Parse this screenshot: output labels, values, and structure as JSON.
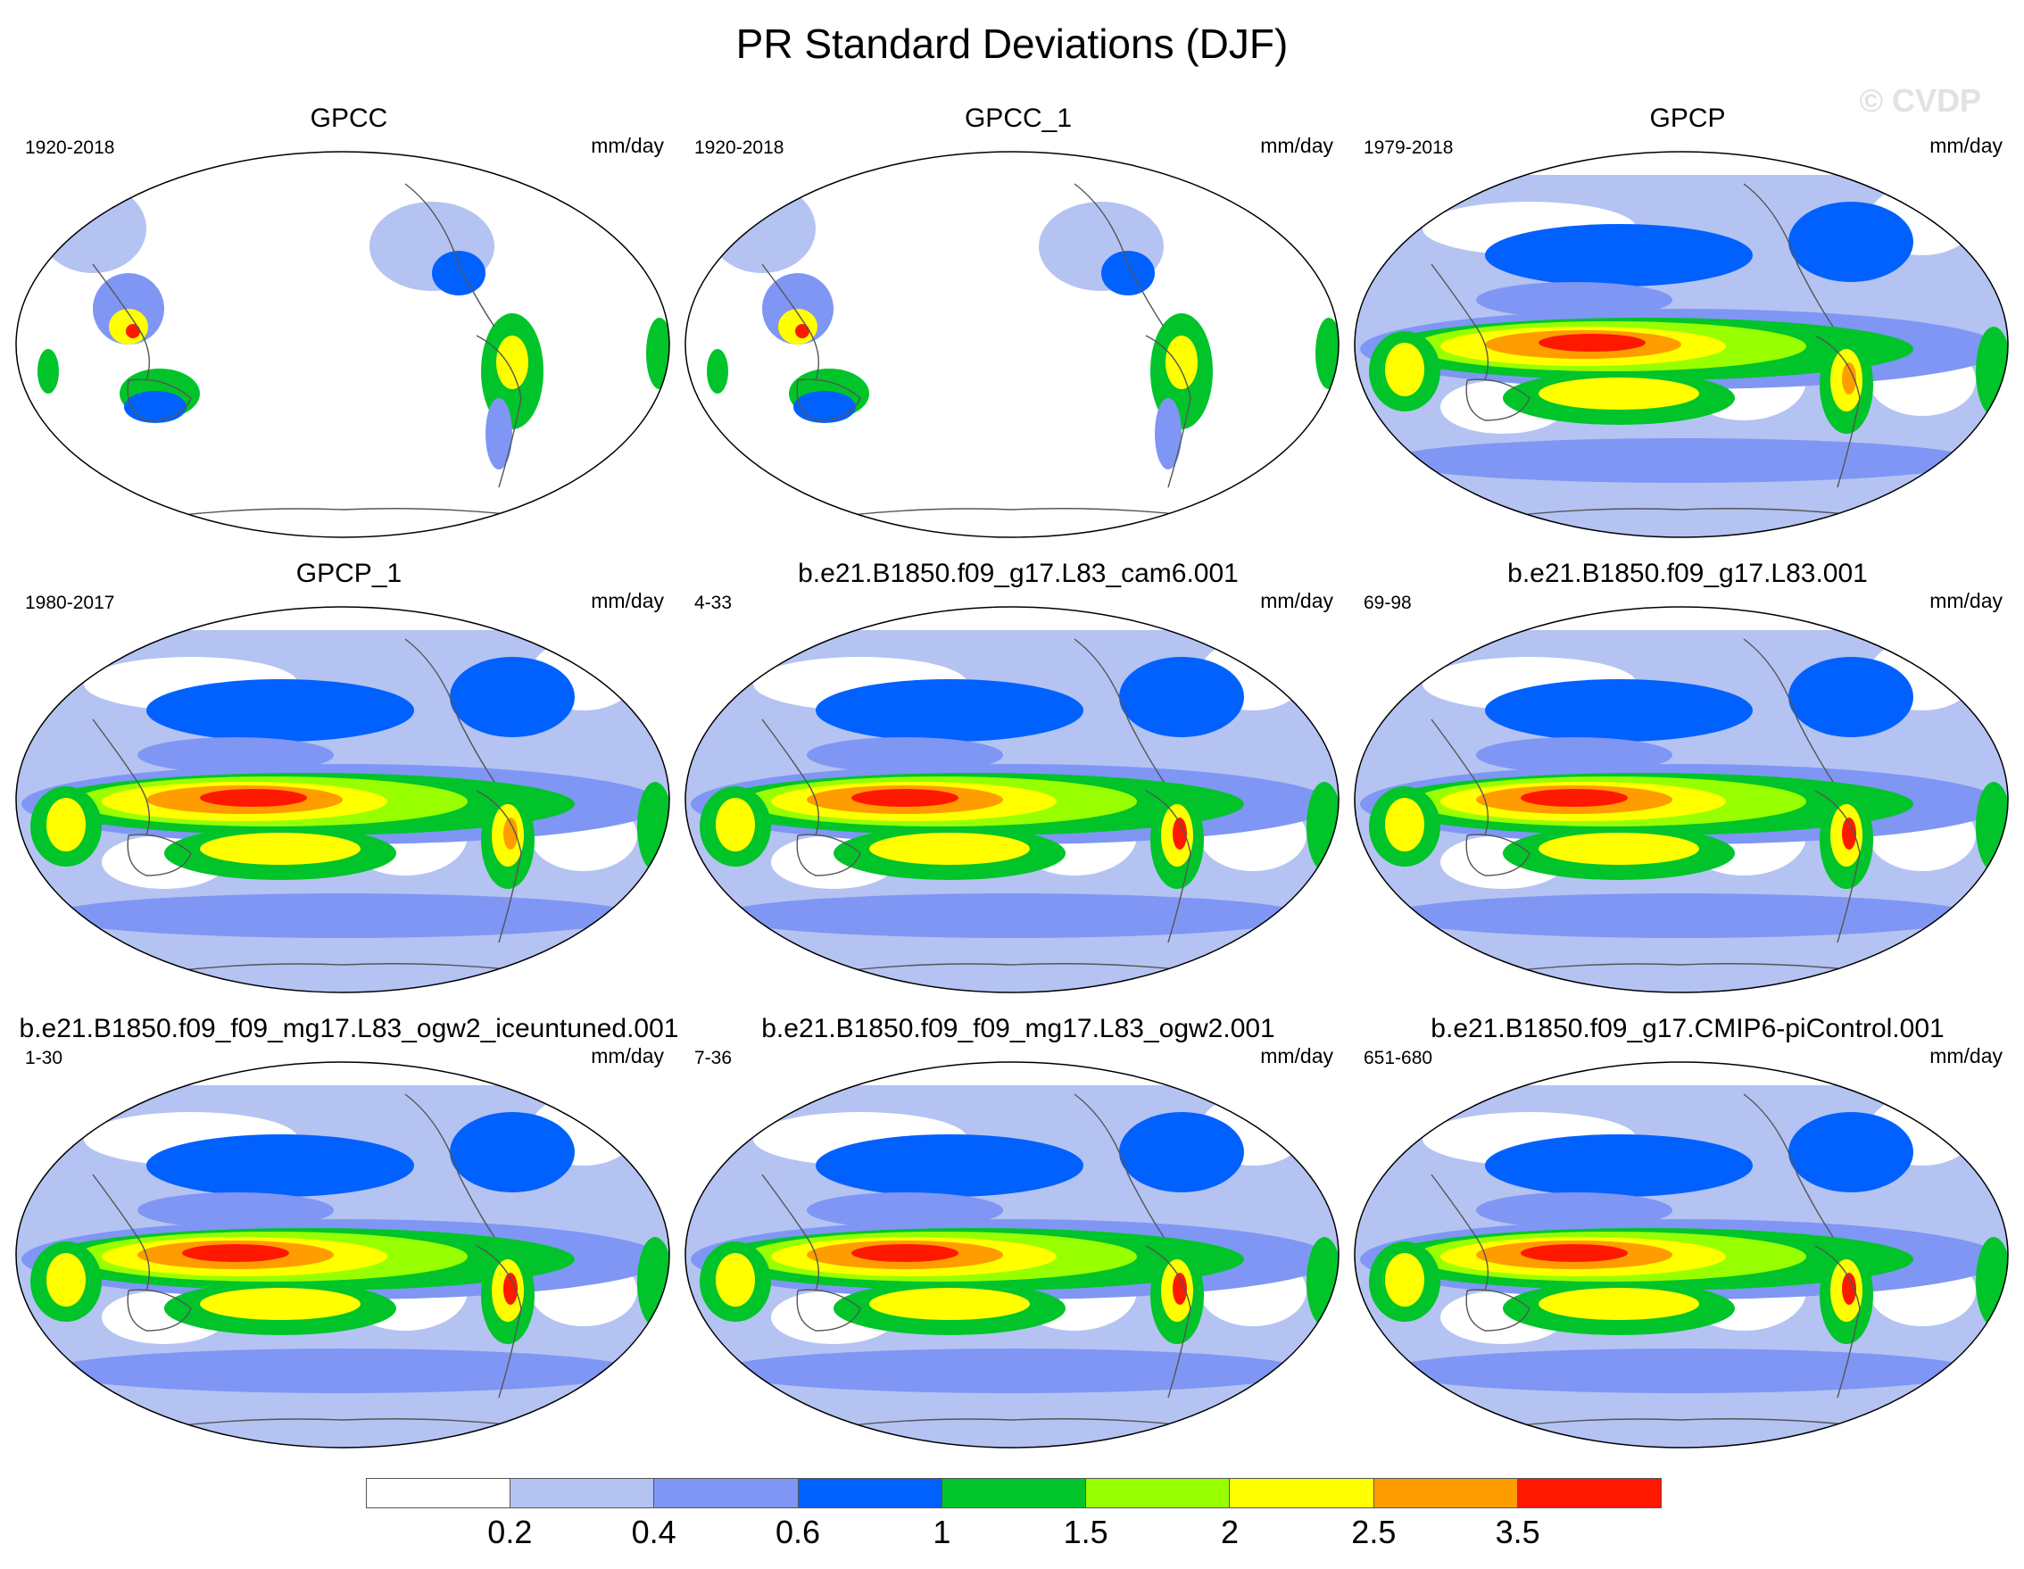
{
  "title": "PR Standard Deviations (DJF)",
  "watermark": "© CVDP",
  "units": "mm/day",
  "colorbar": {
    "colors": [
      "#ffffff",
      "#b4c3f2",
      "#7f96f4",
      "#0061ff",
      "#00c42a",
      "#98ff00",
      "#ffff00",
      "#ff9c00",
      "#ff1800"
    ],
    "labels": [
      "0.2",
      "0.4",
      "0.6",
      "1",
      "1.5",
      "2",
      "2.5",
      "3.5"
    ]
  },
  "panels": [
    {
      "title": "GPCC",
      "years": "1920-2018",
      "type": "land"
    },
    {
      "title": "GPCC_1",
      "years": "1920-2018",
      "type": "land"
    },
    {
      "title": "GPCP",
      "years": "1979-2018",
      "type": "obs"
    },
    {
      "title": "GPCP_1",
      "years": "1980-2017",
      "type": "obs"
    },
    {
      "title": "b.e21.B1850.f09_g17.L83_cam6.001",
      "years": "4-33",
      "type": "model"
    },
    {
      "title": "b.e21.B1850.f09_g17.L83.001",
      "years": "69-98",
      "type": "model"
    },
    {
      "title": "b.e21.B1850.f09_f09_mg17.L83_ogw2_iceuntuned.001",
      "years": "1-30",
      "type": "model"
    },
    {
      "title": "b.e21.B1850.f09_f09_mg17.L83_ogw2.001",
      "years": "7-36",
      "type": "model"
    },
    {
      "title": "b.e21.B1850.f09_g17.CMIP6-piControl.001",
      "years": "651-680",
      "type": "model"
    }
  ]
}
